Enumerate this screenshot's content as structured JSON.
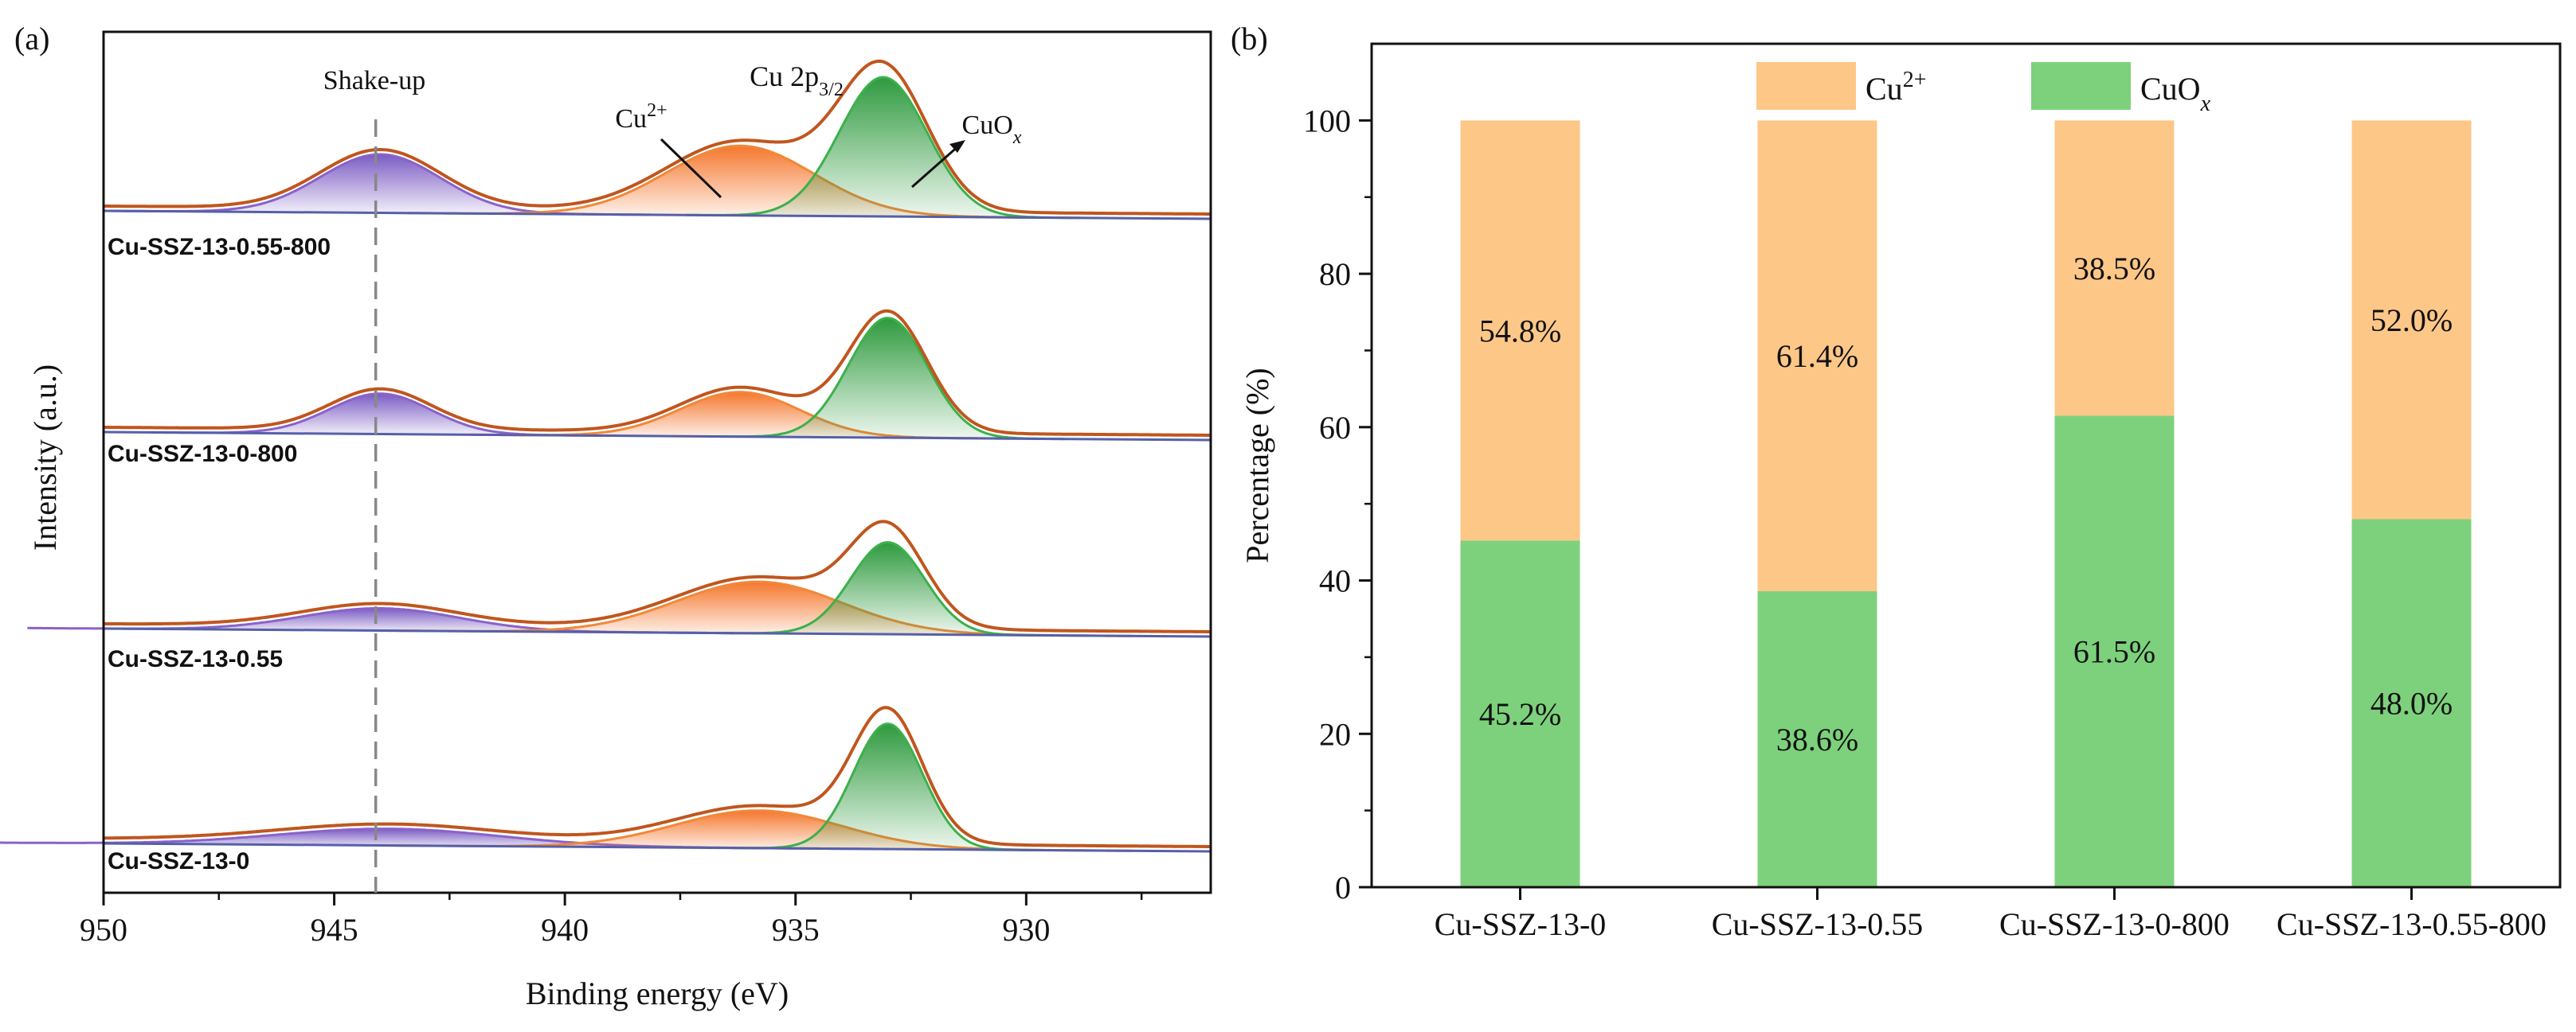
{
  "panels": {
    "a_label": "(a)",
    "b_label": "(b)"
  },
  "colors": {
    "envelope": "#c0561e",
    "cu2_fill": "#f5772d",
    "cu2_line": "#f0883a",
    "cuox_fill": "#2e9a3e",
    "cuox_line": "#3cb04c",
    "shake_fill": "#7b5cc4",
    "shake_line": "#8a62c8",
    "baseline": "#5560a8",
    "bar_cu2": "#fdc788",
    "bar_cuox": "#7dd17c",
    "axis": "#111111",
    "dash": "#888888"
  },
  "chart_data": [
    {
      "type": "line",
      "title": "",
      "xlabel": "Binding energy (eV)",
      "ylabel": "Intensity (a.u.)",
      "xlim": [
        950,
        926
      ],
      "x_reversed": true,
      "xticks": [
        950,
        945,
        940,
        935,
        930
      ],
      "xtick_labels": [
        "950",
        "945",
        "940",
        "935",
        "930"
      ],
      "annotations": {
        "shake_up": "Shake-up",
        "shake_up_position_eV": 944.1,
        "cu2p": "Cu 2p",
        "cu2p_sub": "3/2",
        "cu2": "Cu",
        "cu2_sup": "2+",
        "cuox": "CuO",
        "cuox_sub": "x"
      },
      "series": [
        {
          "name": "Cu-SSZ-13-0.55-800",
          "peaks": [
            {
              "component": "Shake-up",
              "center_eV": 944.0,
              "height": 0.42,
              "width_eV": 1.3
            },
            {
              "component": "Cu2+",
              "center_eV": 936.2,
              "height": 0.5,
              "width_eV": 1.6
            },
            {
              "component": "CuOx",
              "center_eV": 933.1,
              "height": 1.0,
              "width_eV": 0.95
            }
          ]
        },
        {
          "name": "Cu-SSZ-13-0-800",
          "peaks": [
            {
              "component": "Shake-up",
              "center_eV": 944.0,
              "height": 0.29,
              "width_eV": 1.1
            },
            {
              "component": "Cu2+",
              "center_eV": 936.2,
              "height": 0.32,
              "width_eV": 1.3
            },
            {
              "component": "CuOx",
              "center_eV": 933.0,
              "height": 0.86,
              "width_eV": 0.85
            }
          ]
        },
        {
          "name": "Cu-SSZ-13-0.55",
          "peaks": [
            {
              "component": "Shake-up",
              "center_eV": 944.0,
              "height": 0.16,
              "width_eV": 1.7
            },
            {
              "component": "Cu2+",
              "center_eV": 935.8,
              "height": 0.37,
              "width_eV": 1.8
            },
            {
              "component": "CuOx",
              "center_eV": 933.0,
              "height": 0.66,
              "width_eV": 0.8
            }
          ]
        },
        {
          "name": "Cu-SSZ-13-0",
          "peaks": [
            {
              "component": "Shake-up",
              "center_eV": 943.8,
              "height": 0.12,
              "width_eV": 2.4
            },
            {
              "component": "Cu2+",
              "center_eV": 935.8,
              "height": 0.27,
              "width_eV": 1.8
            },
            {
              "component": "CuOx",
              "center_eV": 933.0,
              "height": 0.9,
              "width_eV": 0.75
            }
          ]
        }
      ]
    },
    {
      "type": "bar",
      "stacked": true,
      "title": "",
      "xlabel": "",
      "ylabel": "Percentage (%)",
      "ylim": [
        0,
        110
      ],
      "yticks": [
        0,
        20,
        40,
        60,
        80,
        100
      ],
      "categories": [
        "Cu-SSZ-13-0",
        "Cu-SSZ-13-0.55",
        "Cu-SSZ-13-0-800",
        "Cu-SSZ-13-0.55-800"
      ],
      "legend_position": "top",
      "series": [
        {
          "name": "CuOx",
          "legend_base": "CuO",
          "legend_sub": "x",
          "values": [
            45.2,
            38.6,
            61.5,
            48.0
          ],
          "labels": [
            "45.2%",
            "38.6%",
            "61.5%",
            "48.0%"
          ]
        },
        {
          "name": "Cu2+",
          "legend_base": "Cu",
          "legend_sup": "2+",
          "values": [
            54.8,
            61.4,
            38.5,
            52.0
          ],
          "labels": [
            "54.8%",
            "61.4%",
            "38.5%",
            "52.0%"
          ]
        }
      ]
    }
  ]
}
